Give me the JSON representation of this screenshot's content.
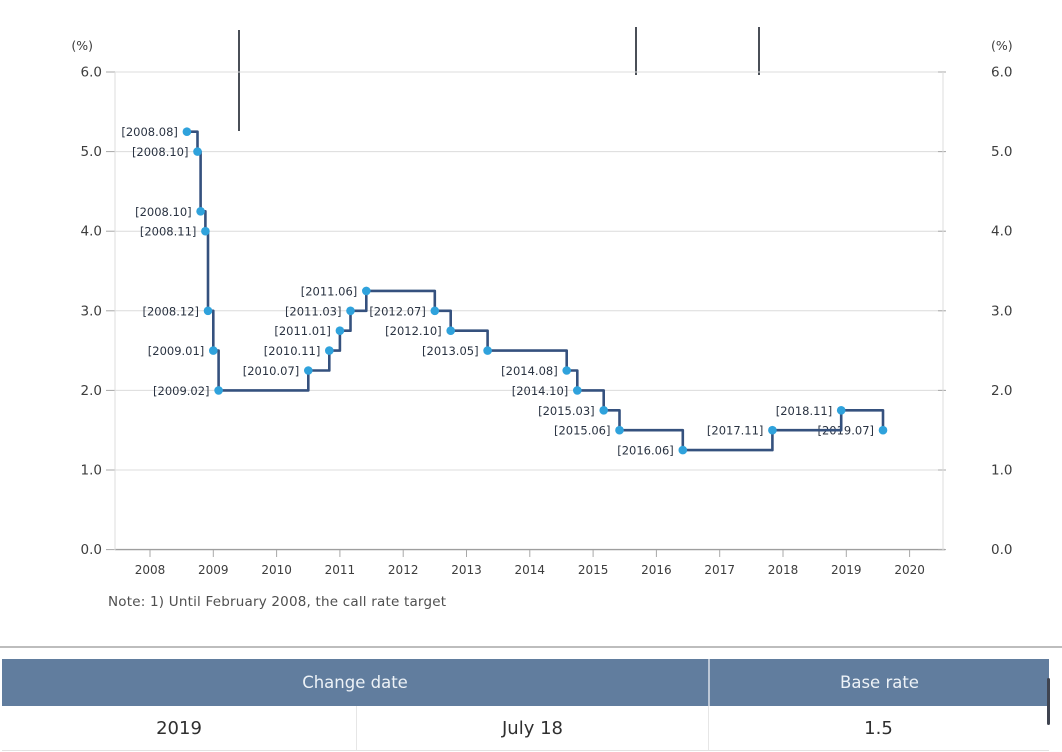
{
  "chart_data": {
    "type": "line",
    "step": true,
    "title": "",
    "unit_label_left": "(%)",
    "unit_label_right": "(%)",
    "ylim": [
      0.0,
      6.0
    ],
    "yticks": [
      0,
      1,
      2,
      3,
      4,
      5,
      6
    ],
    "ytick_labels": [
      "0.0",
      "1.0",
      "2.0",
      "3.0",
      "4.0",
      "5.0",
      "6.0"
    ],
    "x_years": [
      "2008",
      "2009",
      "2010",
      "2011",
      "2012",
      "2013",
      "2014",
      "2015",
      "2016",
      "2017",
      "2018",
      "2019",
      "2020"
    ],
    "grid": true,
    "legend": "none",
    "series_name": "Base rate",
    "points": [
      {
        "label": "[2008.08]",
        "year": 2008.583,
        "value": 5.25
      },
      {
        "label": "[2008.10]",
        "year": 2008.75,
        "value": 5.0
      },
      {
        "label": "[2008.10]",
        "year": 2008.8,
        "value": 4.25
      },
      {
        "label": "[2008.11]",
        "year": 2008.875,
        "value": 4.0
      },
      {
        "label": "[2008.12]",
        "year": 2008.917,
        "value": 3.0
      },
      {
        "label": "[2009.01]",
        "year": 2009.0,
        "value": 2.5
      },
      {
        "label": "[2009.02]",
        "year": 2009.083,
        "value": 2.0
      },
      {
        "label": "[2010.07]",
        "year": 2010.5,
        "value": 2.25
      },
      {
        "label": "[2010.11]",
        "year": 2010.833,
        "value": 2.5
      },
      {
        "label": "[2011.01]",
        "year": 2011.0,
        "value": 2.75
      },
      {
        "label": "[2011.03]",
        "year": 2011.167,
        "value": 3.0
      },
      {
        "label": "[2011.06]",
        "year": 2011.417,
        "value": 3.25
      },
      {
        "label": "[2012.07]",
        "year": 2012.5,
        "value": 3.0
      },
      {
        "label": "[2012.10]",
        "year": 2012.75,
        "value": 2.75
      },
      {
        "label": "[2013.05]",
        "year": 2013.333,
        "value": 2.5
      },
      {
        "label": "[2014.08]",
        "year": 2014.583,
        "value": 2.25
      },
      {
        "label": "[2014.10]",
        "year": 2014.75,
        "value": 2.0
      },
      {
        "label": "[2015.03]",
        "year": 2015.167,
        "value": 1.75
      },
      {
        "label": "[2015.06]",
        "year": 2015.417,
        "value": 1.5
      },
      {
        "label": "[2016.06]",
        "year": 2016.417,
        "value": 1.25
      },
      {
        "label": "[2017.11]",
        "year": 2017.833,
        "value": 1.5
      },
      {
        "label": "[2018.11]",
        "year": 2018.92,
        "value": 1.75
      },
      {
        "label": "[2019.07]",
        "year": 2019.58,
        "value": 1.5
      }
    ],
    "colors": {
      "line": "#35517e",
      "marker": "#2fa2dc",
      "grid": "#dcdcdc",
      "baseline": "#9e9e9e",
      "tick": "#a8a8a8"
    }
  },
  "note": {
    "text": "Note: 1) Until February 2008, the call rate target"
  },
  "table": {
    "header": [
      {
        "label": "Change date"
      },
      {
        "label": "Base rate"
      }
    ],
    "rows": [
      [
        "2019",
        "July 18",
        "1.5"
      ]
    ],
    "header_bg": "#617d9e"
  }
}
